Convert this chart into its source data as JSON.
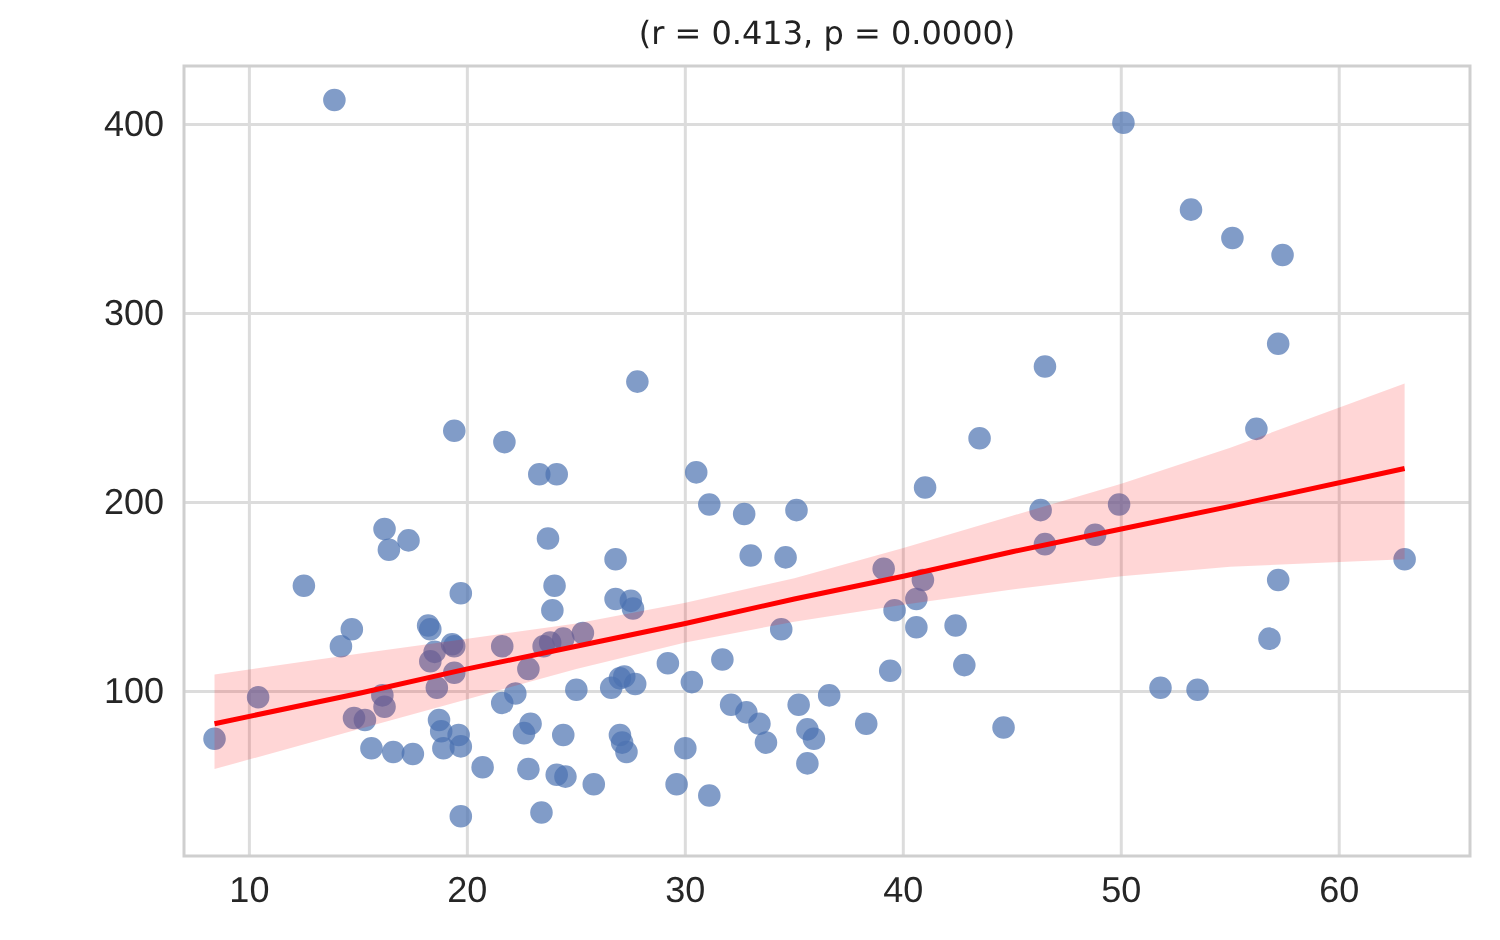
{
  "chart_data": {
    "type": "scatter",
    "title": "(r = 0.413, p = 0.0000)",
    "xlim": [
      7,
      66
    ],
    "ylim": [
      13,
      431
    ],
    "xticks": [
      10,
      20,
      30,
      40,
      50,
      60
    ],
    "yticks": [
      100,
      200,
      300,
      400
    ],
    "grid": true,
    "series": [
      {
        "marker": "circle",
        "color": "#4c72b0",
        "x": [
          27.8,
          19.4,
          21.7,
          23.3,
          24.1,
          30.5,
          31.1,
          32.7,
          35.1,
          16.2,
          16.4,
          17.3,
          23.7,
          33.0,
          34.6,
          12.5,
          19.7,
          24.0,
          26.8,
          26.8,
          27.5,
          27.6,
          23.9,
          14.7,
          14.2,
          18.2,
          18.3,
          18.5,
          19.3,
          19.4,
          18.3,
          19.4,
          18.6,
          21.6,
          23.5,
          23.8,
          24.4,
          25.3,
          22.8,
          34.4,
          31.7,
          29.2,
          30.3,
          27.0,
          27.2,
          27.7,
          26.6,
          25.0,
          10.4,
          8.4,
          16.1,
          16.2,
          14.8,
          15.3,
          21.6,
          22.2,
          18.7,
          18.8,
          19.6,
          19.7,
          18.9,
          15.6,
          16.6,
          17.5,
          22.9,
          22.6,
          24.4,
          20.7,
          22.8,
          24.1,
          24.5,
          25.8,
          27.0,
          27.1,
          27.3,
          30.0,
          29.6,
          31.1,
          32.1,
          32.8,
          33.4,
          33.7,
          35.2,
          35.6,
          35.9,
          35.6,
          36.6,
          19.7,
          23.4,
          13.9,
          50.1,
          53.2,
          55.1,
          57.4,
          57.2,
          46.5,
          43.5,
          56.2,
          41.0,
          46.3,
          49.9,
          46.5,
          48.8,
          39.1,
          40.9,
          40.6,
          39.6,
          40.6,
          42.4,
          42.8,
          39.4,
          38.3,
          44.6,
          51.8,
          53.5,
          56.8,
          57.2,
          63.0
        ],
        "values": [
          264,
          238,
          232,
          215,
          215,
          216,
          199,
          194,
          196,
          186,
          175,
          180,
          181,
          172,
          171,
          156,
          152,
          156,
          170,
          149,
          148,
          144,
          143,
          133,
          124,
          135,
          133,
          121,
          125,
          124,
          116,
          110,
          102,
          124,
          124,
          126,
          128,
          131,
          112,
          133,
          117,
          115,
          105,
          107,
          108,
          104,
          102,
          101,
          97,
          75,
          98,
          92,
          86,
          85,
          94,
          99,
          85,
          79,
          77,
          71,
          70,
          70,
          68,
          67,
          83,
          78,
          77,
          60,
          59,
          56,
          55,
          51,
          77,
          73,
          68,
          70,
          51,
          45,
          93,
          89,
          83,
          73,
          93,
          80,
          75,
          62,
          98,
          34,
          36,
          413,
          401,
          355,
          340,
          331,
          284,
          272,
          234,
          239,
          208,
          196,
          199,
          178,
          183,
          165,
          159,
          149,
          143,
          134,
          135,
          114,
          111,
          83,
          81,
          102,
          101,
          128,
          159,
          170
        ]
      },
      {
        "type": "line",
        "color": "#ff0000",
        "x": [
          8.4,
          15,
          20,
          25,
          30,
          35,
          40,
          45,
          50,
          55,
          63
        ],
        "values": [
          83,
          99,
          112,
          124,
          136,
          149,
          161,
          174,
          186,
          198,
          218
        ],
        "lower": [
          59,
          80,
          96,
          112,
          126,
          137,
          146,
          154,
          161,
          166,
          170
        ],
        "upper": [
          109,
          120,
          128,
          136,
          147,
          160,
          176,
          193,
          210,
          229,
          263
        ]
      }
    ]
  }
}
